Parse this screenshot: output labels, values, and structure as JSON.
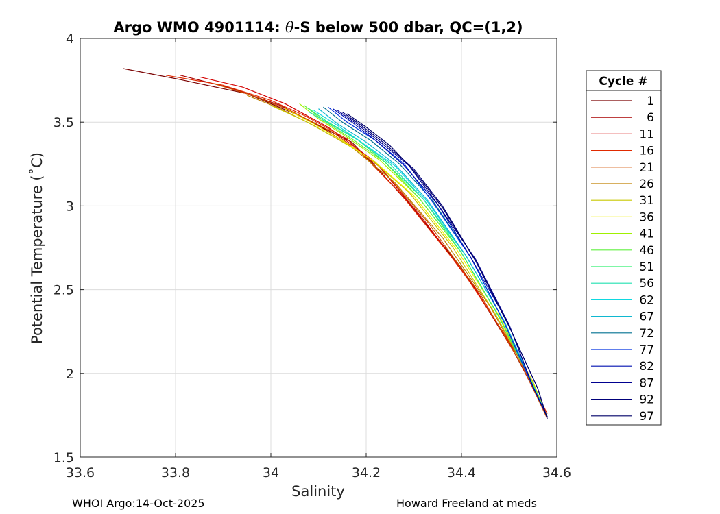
{
  "chart_data": {
    "type": "line",
    "title_prefix": "Argo WMO 4901114: ",
    "title_symbol": "θ",
    "title_suffix": "-S below 500 dbar,  QC=(1,2)",
    "xlabel": "Salinity",
    "ylabel": "Potential Temperature (˚C)",
    "xlim": [
      33.6,
      34.6
    ],
    "ylim": [
      1.5,
      4
    ],
    "xticks": [
      "33.6",
      "33.8",
      "34",
      "34.2",
      "34.4",
      "34.6"
    ],
    "yticks": [
      "1.5",
      "2",
      "2.5",
      "3",
      "3.5",
      "4"
    ],
    "grid": true,
    "legend": {
      "title": "Cycle #",
      "position": "right-outside",
      "entries": [
        {
          "label": "1",
          "color": "#7a0000"
        },
        {
          "label": "6",
          "color": "#a80000"
        },
        {
          "label": "11",
          "color": "#d40000"
        },
        {
          "label": "16",
          "color": "#e02a00"
        },
        {
          "label": "21",
          "color": "#d05000"
        },
        {
          "label": "26",
          "color": "#c08000"
        },
        {
          "label": "31",
          "color": "#c8c800"
        },
        {
          "label": "36",
          "color": "#f0f000"
        },
        {
          "label": "41",
          "color": "#a0f000"
        },
        {
          "label": "46",
          "color": "#60f040"
        },
        {
          "label": "51",
          "color": "#30f070"
        },
        {
          "label": "56",
          "color": "#20e0b0"
        },
        {
          "label": "62",
          "color": "#10d8e0"
        },
        {
          "label": "67",
          "color": "#10b8d0"
        },
        {
          "label": "72",
          "color": "#007090"
        },
        {
          "label": "77",
          "color": "#0030e0"
        },
        {
          "label": "82",
          "color": "#0010b0"
        },
        {
          "label": "87",
          "color": "#000090"
        },
        {
          "label": "92",
          "color": "#00007a"
        },
        {
          "label": "97",
          "color": "#000068"
        }
      ]
    },
    "series": [
      {
        "name": "1",
        "x": [
          33.69,
          33.8,
          33.95,
          34.05,
          34.17,
          34.28,
          34.4,
          34.5,
          34.58
        ],
        "y": [
          3.82,
          3.76,
          3.67,
          3.55,
          3.38,
          3.05,
          2.63,
          2.18,
          1.76
        ]
      },
      {
        "name": "6",
        "x": [
          33.81,
          33.92,
          34.02,
          34.1,
          34.2,
          34.3,
          34.42,
          34.52,
          34.58
        ],
        "y": [
          3.78,
          3.7,
          3.6,
          3.48,
          3.3,
          2.98,
          2.55,
          2.08,
          1.74
        ]
      },
      {
        "name": "11",
        "x": [
          33.85,
          33.94,
          34.03,
          34.12,
          34.22,
          34.32,
          34.43,
          34.53,
          34.58
        ],
        "y": [
          3.77,
          3.71,
          3.61,
          3.47,
          3.26,
          2.92,
          2.5,
          2.05,
          1.73
        ]
      },
      {
        "name": "16",
        "x": [
          33.78,
          33.9,
          34.0,
          34.07,
          34.16,
          34.27,
          34.4,
          34.51,
          34.58
        ],
        "y": [
          3.78,
          3.72,
          3.63,
          3.54,
          3.4,
          3.08,
          2.62,
          2.15,
          1.76
        ]
      },
      {
        "name": "21",
        "x": [
          33.88,
          33.96,
          34.04,
          34.13,
          34.23,
          34.33,
          34.44,
          34.53,
          34.58
        ],
        "y": [
          3.73,
          3.66,
          3.57,
          3.44,
          3.23,
          2.9,
          2.47,
          2.03,
          1.73
        ]
      },
      {
        "name": "26",
        "x": [
          33.95,
          34.02,
          34.09,
          34.17,
          34.26,
          34.36,
          34.46,
          34.54,
          34.58
        ],
        "y": [
          3.66,
          3.58,
          3.48,
          3.35,
          3.14,
          2.81,
          2.4,
          1.99,
          1.74
        ]
      },
      {
        "name": "31",
        "x": [
          34.0,
          34.07,
          34.14,
          34.21,
          34.29,
          34.38,
          34.47,
          34.55,
          34.58
        ],
        "y": [
          3.6,
          3.51,
          3.4,
          3.28,
          3.08,
          2.76,
          2.36,
          1.95,
          1.74
        ]
      },
      {
        "name": "36",
        "x": [
          34.03,
          34.09,
          34.15,
          34.22,
          34.3,
          34.39,
          34.48,
          34.55,
          34.58
        ],
        "y": [
          3.58,
          3.49,
          3.39,
          3.26,
          3.06,
          2.74,
          2.34,
          1.94,
          1.74
        ]
      },
      {
        "name": "41",
        "x": [
          34.06,
          34.1,
          34.16,
          34.23,
          34.31,
          34.4,
          34.48,
          34.55,
          34.58
        ],
        "y": [
          3.61,
          3.52,
          3.41,
          3.27,
          3.05,
          2.72,
          2.33,
          1.94,
          1.74
        ]
      },
      {
        "name": "46",
        "x": [
          34.07,
          34.11,
          34.17,
          34.24,
          34.31,
          34.4,
          34.48,
          34.55,
          34.58
        ],
        "y": [
          3.6,
          3.51,
          3.4,
          3.26,
          3.05,
          2.72,
          2.33,
          1.93,
          1.74
        ]
      },
      {
        "name": "51",
        "x": [
          34.08,
          34.12,
          34.18,
          34.24,
          34.32,
          34.4,
          34.48,
          34.55,
          34.58
        ],
        "y": [
          3.58,
          3.5,
          3.4,
          3.26,
          3.04,
          2.72,
          2.33,
          1.93,
          1.74
        ]
      },
      {
        "name": "56",
        "x": [
          34.08,
          34.13,
          34.19,
          34.25,
          34.32,
          34.41,
          34.49,
          34.55,
          34.58
        ],
        "y": [
          3.56,
          3.48,
          3.38,
          3.25,
          3.04,
          2.7,
          2.31,
          1.93,
          1.74
        ]
      },
      {
        "name": "62",
        "x": [
          34.09,
          34.14,
          34.19,
          34.26,
          34.33,
          34.41,
          34.49,
          34.55,
          34.58
        ],
        "y": [
          3.57,
          3.48,
          3.38,
          3.24,
          3.02,
          2.7,
          2.31,
          1.93,
          1.74
        ]
      },
      {
        "name": "67",
        "x": [
          34.1,
          34.14,
          34.2,
          34.26,
          34.33,
          34.41,
          34.49,
          34.55,
          34.58
        ],
        "y": [
          3.58,
          3.49,
          3.38,
          3.25,
          3.03,
          2.7,
          2.31,
          1.93,
          1.74
        ]
      },
      {
        "name": "72",
        "x": [
          34.11,
          34.15,
          34.21,
          34.27,
          34.34,
          34.42,
          34.49,
          34.55,
          34.58
        ],
        "y": [
          3.59,
          3.5,
          3.39,
          3.25,
          3.03,
          2.69,
          2.3,
          1.92,
          1.74
        ]
      },
      {
        "name": "77",
        "x": [
          34.12,
          34.16,
          34.22,
          34.28,
          34.34,
          34.42,
          34.49,
          34.55,
          34.58
        ],
        "y": [
          3.59,
          3.5,
          3.39,
          3.25,
          3.02,
          2.69,
          2.3,
          1.92,
          1.74
        ]
      },
      {
        "name": "82",
        "x": [
          34.13,
          34.17,
          34.22,
          34.28,
          34.35,
          34.42,
          34.5,
          34.55,
          34.58
        ],
        "y": [
          3.58,
          3.5,
          3.39,
          3.24,
          3.01,
          2.69,
          2.29,
          1.92,
          1.74
        ]
      },
      {
        "name": "87",
        "x": [
          34.14,
          34.18,
          34.23,
          34.29,
          34.35,
          34.43,
          34.5,
          34.55,
          34.58
        ],
        "y": [
          3.57,
          3.49,
          3.38,
          3.24,
          3.01,
          2.68,
          2.29,
          1.92,
          1.74
        ]
      },
      {
        "name": "92",
        "x": [
          34.15,
          34.19,
          34.24,
          34.3,
          34.36,
          34.43,
          34.5,
          34.56,
          34.58
        ],
        "y": [
          3.56,
          3.48,
          3.37,
          3.22,
          3.0,
          2.67,
          2.28,
          1.91,
          1.73
        ]
      },
      {
        "name": "97",
        "x": [
          34.16,
          34.2,
          34.25,
          34.3,
          34.36,
          34.43,
          34.5,
          34.56,
          34.58
        ],
        "y": [
          3.55,
          3.47,
          3.36,
          3.21,
          2.99,
          2.67,
          2.28,
          1.91,
          1.73
        ]
      }
    ]
  },
  "footer": {
    "left": "WHOI Argo:14-Oct-2025",
    "right": "Howard Freeland at meds"
  }
}
